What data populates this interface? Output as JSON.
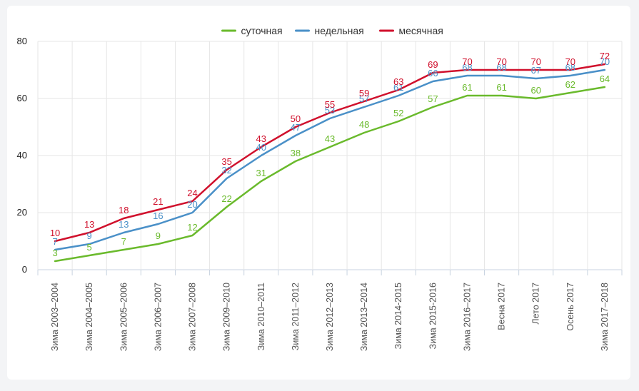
{
  "chart_data": {
    "type": "line",
    "title": "",
    "xlabel": "",
    "ylabel": "",
    "ylim": [
      0,
      80
    ],
    "yticks": [
      0,
      20,
      40,
      60,
      80
    ],
    "grid": true,
    "legend_position": "top-center",
    "categories": [
      "Зима 2003–2004",
      "Зима 2004–2005",
      "Зима 2005–2006",
      "Зима 2006–2007",
      "Зима 2007–2008",
      "Зима 2009–2010",
      "Зима 2010–2011",
      "Зима 2011–2012",
      "Зима 2012–2013",
      "Зима 2013–2014",
      "Зима 2014-2015",
      "Зима 2015-2016",
      "Зима 2016–2017",
      "Весна 2017",
      "Лето 2017",
      "Осень 2017",
      "Зима 2017–2018"
    ],
    "series": [
      {
        "name": "суточная",
        "color": "#6aba2c",
        "values": [
          3,
          5,
          7,
          9,
          12,
          22,
          31,
          38,
          43,
          48,
          52,
          57,
          61,
          61,
          60,
          62,
          64
        ]
      },
      {
        "name": "недельная",
        "color": "#4a90c8",
        "values": [
          7,
          9,
          13,
          16,
          20,
          32,
          40,
          47,
          53,
          57,
          61,
          66,
          68,
          68,
          67,
          68,
          70
        ]
      },
      {
        "name": "месячная",
        "color": "#d0102c",
        "values": [
          10,
          13,
          18,
          21,
          24,
          35,
          43,
          50,
          55,
          59,
          63,
          69,
          70,
          70,
          70,
          70,
          72
        ]
      }
    ]
  }
}
